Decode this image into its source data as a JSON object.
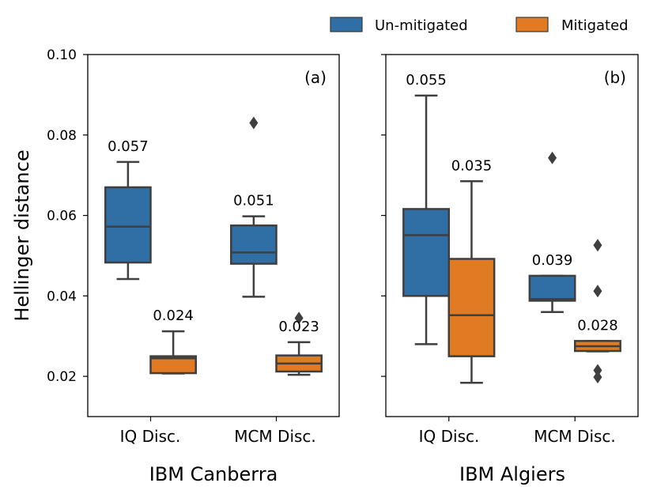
{
  "legend": {
    "items": [
      {
        "label": "Un-mitigated",
        "color": "#2f6fa5"
      },
      {
        "label": "Mitigated",
        "color": "#e07b24"
      }
    ],
    "placement": "top-right"
  },
  "shared": {
    "ylabel": "Hellinger distance",
    "ylim": [
      0.01,
      0.1
    ],
    "yticks": [
      0.02,
      0.04,
      0.06,
      0.08,
      0.1
    ],
    "ytick_labels": [
      "0.02",
      "0.04",
      "0.06",
      "0.08",
      "0.10"
    ],
    "categories": [
      "IQ Disc.",
      "MCM Disc."
    ]
  },
  "chart_data": [
    {
      "type": "box",
      "panel_label": "(a)",
      "xlabel": "IBM Canberra",
      "ylabel": "Hellinger distance",
      "ylim": [
        0.01,
        0.1
      ],
      "categories": [
        "IQ Disc.",
        "MCM Disc."
      ],
      "series": [
        {
          "name": "Un-mitigated",
          "boxes": [
            {
              "category": "IQ Disc.",
              "whisker_low": 0.0442,
              "q1": 0.0483,
              "median": 0.0572,
              "q3": 0.067,
              "whisker_high": 0.0733,
              "outliers": [],
              "annotation": "0.057"
            },
            {
              "category": "MCM Disc.",
              "whisker_low": 0.0398,
              "q1": 0.048,
              "median": 0.0508,
              "q3": 0.0575,
              "whisker_high": 0.0598,
              "outliers": [
                0.083
              ],
              "annotation": "0.051"
            }
          ]
        },
        {
          "name": "Mitigated",
          "boxes": [
            {
              "category": "IQ Disc.",
              "whisker_low": 0.0207,
              "q1": 0.0208,
              "median": 0.0245,
              "q3": 0.025,
              "whisker_high": 0.0312,
              "outliers": [],
              "annotation": "0.024"
            },
            {
              "category": "MCM Disc.",
              "whisker_low": 0.0204,
              "q1": 0.0212,
              "median": 0.0232,
              "q3": 0.0252,
              "whisker_high": 0.0285,
              "outliers": [
                0.0345
              ],
              "annotation": "0.023"
            }
          ]
        }
      ]
    },
    {
      "type": "box",
      "panel_label": "(b)",
      "xlabel": "IBM Algiers",
      "ylabel": "",
      "ylim": [
        0.01,
        0.1
      ],
      "categories": [
        "IQ Disc.",
        "MCM Disc."
      ],
      "series": [
        {
          "name": "Un-mitigated",
          "boxes": [
            {
              "category": "IQ Disc.",
              "whisker_low": 0.028,
              "q1": 0.04,
              "median": 0.0551,
              "q3": 0.0616,
              "whisker_high": 0.0898,
              "outliers": [],
              "annotation": "0.055"
            },
            {
              "category": "MCM Disc.",
              "whisker_low": 0.036,
              "q1": 0.0388,
              "median": 0.0392,
              "q3": 0.045,
              "whisker_high": 0.045,
              "outliers": [
                0.0743
              ],
              "annotation": "0.039"
            }
          ]
        },
        {
          "name": "Mitigated",
          "boxes": [
            {
              "category": "IQ Disc.",
              "whisker_low": 0.0184,
              "q1": 0.025,
              "median": 0.0352,
              "q3": 0.0492,
              "whisker_high": 0.0685,
              "outliers": [],
              "annotation": "0.035"
            },
            {
              "category": "MCM Disc.",
              "whisker_low": 0.0262,
              "q1": 0.0263,
              "median": 0.0275,
              "q3": 0.0288,
              "whisker_high": 0.0288,
              "outliers": [
                0.0526,
                0.0412,
                0.0215,
                0.0198
              ],
              "annotation": "0.028"
            }
          ]
        }
      ]
    }
  ]
}
